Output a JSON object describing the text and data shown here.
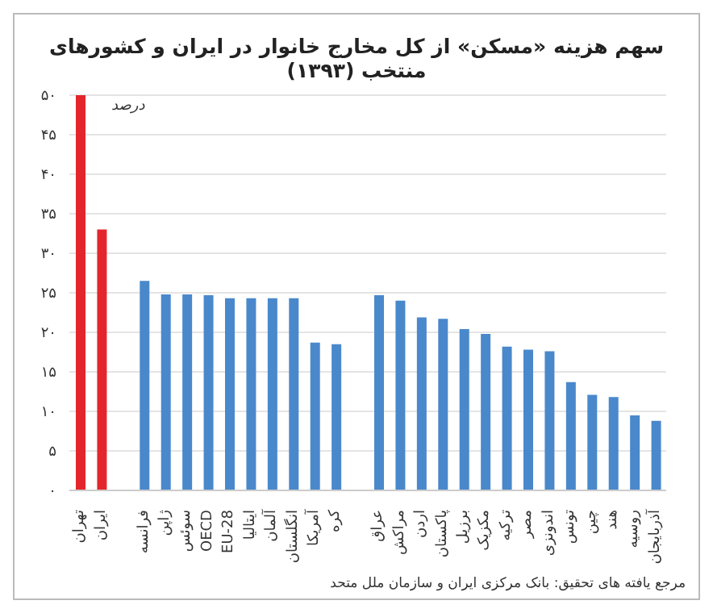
{
  "chart_data": {
    "type": "bar",
    "title": "سهم هزینه «مسکن» از کل مخارج خانوار در ایران و کشورهای منتخب (۱۳۹۳)",
    "categories": [
      "تهران",
      "ایران",
      null,
      "فرانسه",
      "ژاپن",
      "سوئس",
      "OECD",
      "EU-28",
      "ایتالیا",
      "آلمان",
      "انگلستان",
      "آمریکا",
      "کره",
      null,
      "عراق",
      "مراکش",
      "اردن",
      "پاکستان",
      "برزیل",
      "مکزیک",
      "ترکیه",
      "مصر",
      "اندونزی",
      "تونس",
      "چین",
      "هند",
      "روسیه",
      "آذربایجان"
    ],
    "values": [
      50,
      33,
      null,
      26.5,
      24.8,
      24.8,
      24.7,
      24.3,
      24.3,
      24.3,
      24.3,
      18.7,
      18.5,
      null,
      24.7,
      24.0,
      21.9,
      21.7,
      20.4,
      19.8,
      18.2,
      17.8,
      17.6,
      13.7,
      12.1,
      11.8,
      9.5,
      8.8
    ],
    "colors": [
      "#e3262b",
      "#e3262b",
      null,
      "#4a88cc",
      "#4a88cc",
      "#4a88cc",
      "#4a88cc",
      "#4a88cc",
      "#4a88cc",
      "#4a88cc",
      "#4a88cc",
      "#4a88cc",
      "#4a88cc",
      null,
      "#4a88cc",
      "#4a88cc",
      "#4a88cc",
      "#4a88cc",
      "#4a88cc",
      "#4a88cc",
      "#4a88cc",
      "#4a88cc",
      "#4a88cc",
      "#4a88cc",
      "#4a88cc",
      "#4a88cc",
      "#4a88cc",
      "#4a88cc"
    ],
    "ylim": [
      0,
      50
    ],
    "yticks": [
      {
        "value": 0,
        "label": "۰"
      },
      {
        "value": 5,
        "label": "۵"
      },
      {
        "value": 10,
        "label": "۱۰"
      },
      {
        "value": 15,
        "label": "۱۵"
      },
      {
        "value": 20,
        "label": "۲۰"
      },
      {
        "value": 25,
        "label": "۲۵"
      },
      {
        "value": 30,
        "label": "۳۰"
      },
      {
        "value": 35,
        "label": "۳۵"
      },
      {
        "value": 40,
        "label": "۴۰"
      },
      {
        "value": 45,
        "label": "۴۵"
      },
      {
        "value": 50,
        "label": "۵۰"
      }
    ],
    "ylabel": "درصد",
    "annotations": [
      "مرجع یافته های تحقیق: بانک مرکزی ایران و سازمان ملل متحد"
    ],
    "grid": "y",
    "legend": false
  }
}
